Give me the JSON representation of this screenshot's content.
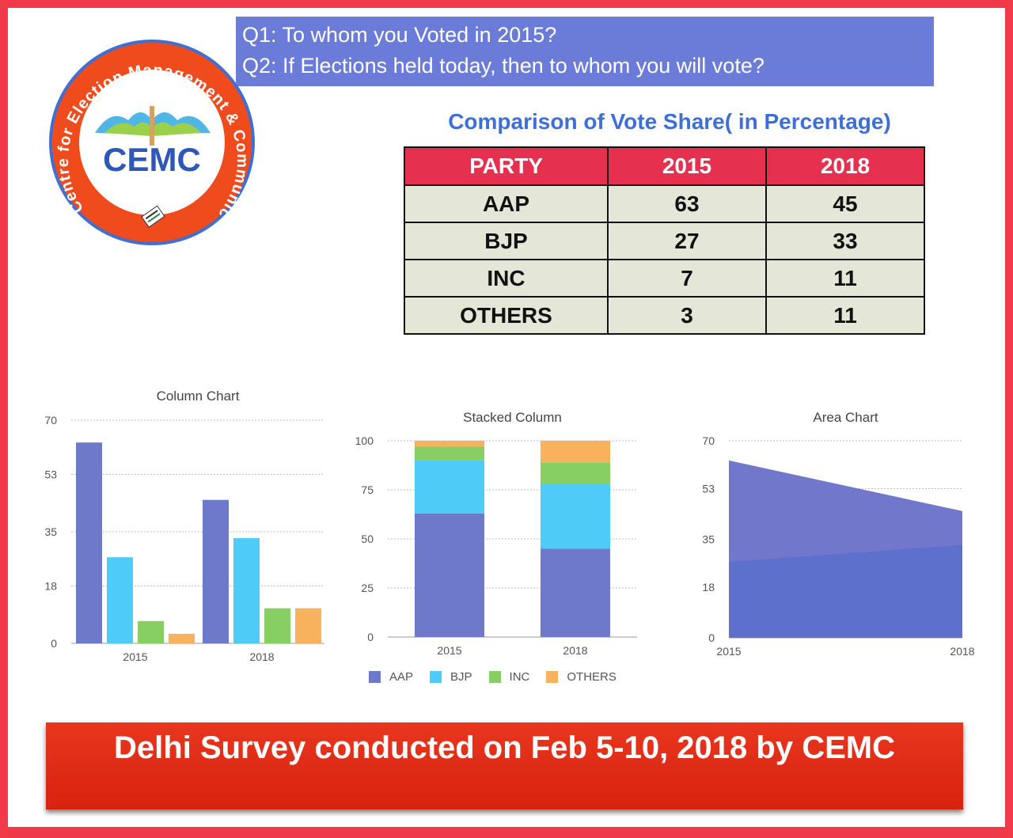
{
  "questions": {
    "q1": "Q1: To whom you Voted in 2015?",
    "q2": "Q2: If Elections held today, then to whom you will vote?"
  },
  "logo": {
    "ring_text": "Centre for Election Management & Communication",
    "letters": "CEMC"
  },
  "table": {
    "title": "Comparison of Vote Share( in Percentage)",
    "headers": [
      "PARTY",
      "2015",
      "2018"
    ],
    "rows": [
      [
        "AAP",
        "63",
        "45"
      ],
      [
        "BJP",
        "27",
        "33"
      ],
      [
        "INC",
        "7",
        "11"
      ],
      [
        "OTHERS",
        "3",
        "11"
      ]
    ]
  },
  "colors": {
    "AAP": "#6f79c9",
    "BJP": "#4fcbf7",
    "INC": "#87cf63",
    "OTHERS": "#f8b25d",
    "area_2015": "#7178cc",
    "area_2018": "#5a70cc"
  },
  "chart_data": [
    {
      "type": "bar",
      "title": "Column Chart",
      "categories": [
        "2015",
        "2018"
      ],
      "series": [
        {
          "name": "AAP",
          "values": [
            63,
            45
          ]
        },
        {
          "name": "BJP",
          "values": [
            27,
            33
          ]
        },
        {
          "name": "INC",
          "values": [
            7,
            11
          ]
        },
        {
          "name": "OTHERS",
          "values": [
            3,
            11
          ]
        }
      ],
      "yticks": [
        "0",
        "18",
        "35",
        "53",
        "70"
      ],
      "ylim": [
        0,
        70
      ],
      "grid": true
    },
    {
      "type": "bar",
      "stacked": true,
      "title": "Stacked Column",
      "categories": [
        "2015",
        "2018"
      ],
      "series": [
        {
          "name": "AAP",
          "values": [
            63,
            45
          ]
        },
        {
          "name": "BJP",
          "values": [
            27,
            33
          ]
        },
        {
          "name": "INC",
          "values": [
            7,
            11
          ]
        },
        {
          "name": "OTHERS",
          "values": [
            3,
            11
          ]
        }
      ],
      "yticks": [
        "0",
        "25",
        "50",
        "75",
        "100"
      ],
      "ylim": [
        0,
        100
      ],
      "grid": true,
      "legend": [
        "AAP",
        "BJP",
        "INC",
        "OTHERS"
      ],
      "legend_position": "bottom"
    },
    {
      "type": "area",
      "title": "Area Chart",
      "x": [
        "2015",
        "2018"
      ],
      "series": [
        {
          "name": "AAP",
          "values": [
            63,
            45
          ]
        },
        {
          "name": "BJP",
          "values": [
            27,
            33
          ]
        }
      ],
      "yticks": [
        "0",
        "18",
        "35",
        "53",
        "70"
      ],
      "ylim": [
        0,
        70
      ],
      "grid": true
    }
  ],
  "footer": {
    "text": "Delhi Survey conducted on Feb 5-10, 2018 by CEMC"
  }
}
